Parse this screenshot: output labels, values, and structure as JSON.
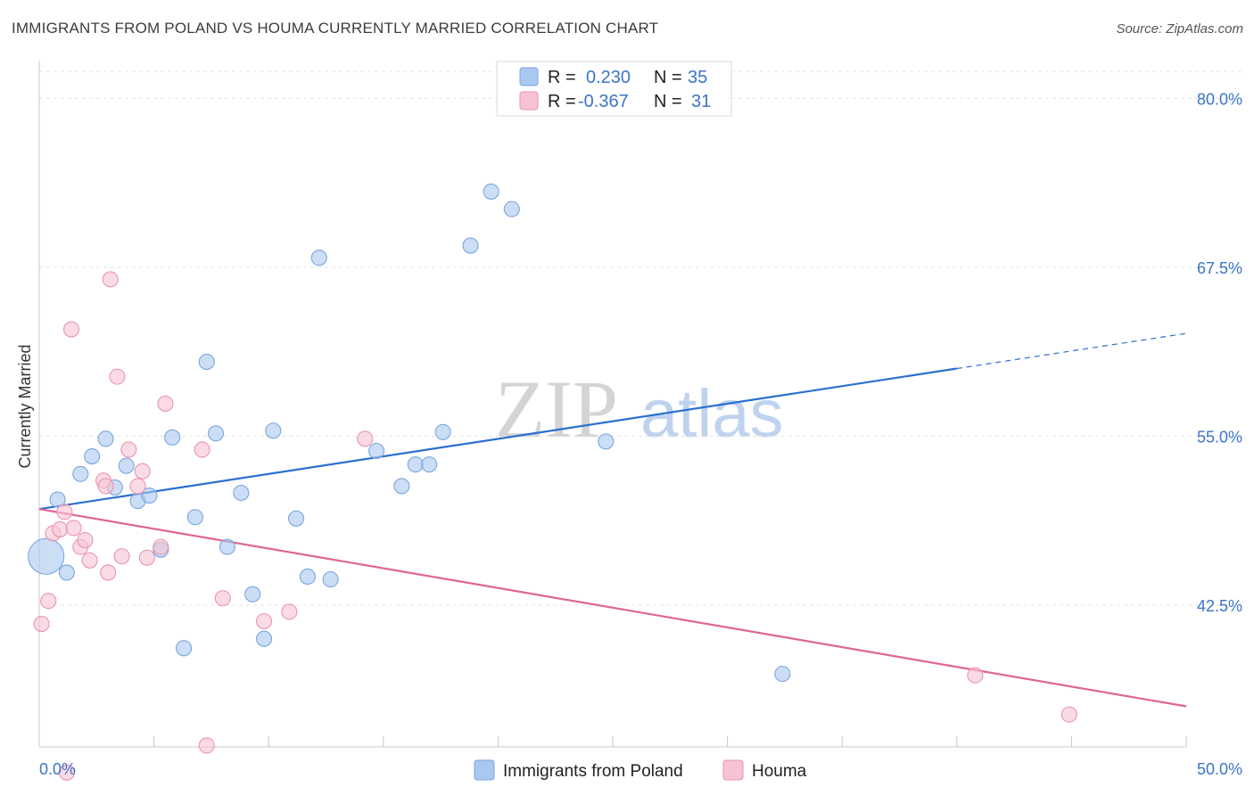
{
  "title": "IMMIGRANTS FROM POLAND VS HOUMA CURRENTLY MARRIED CORRELATION CHART",
  "source": "Source: ZipAtlas.com",
  "watermark": {
    "zip": "ZIP",
    "atlas": "atlas"
  },
  "legend_stats": {
    "r_label": "R =",
    "n_label": "N =",
    "rows": [
      {
        "r": "0.230",
        "n": "35"
      },
      {
        "r": "-0.367",
        "n": "31"
      }
    ]
  },
  "chart_data": {
    "type": "scatter",
    "title": "IMMIGRANTS FROM POLAND VS HOUMA CURRENTLY MARRIED CORRELATION CHART",
    "xlabel": "",
    "ylabel": "Currently Married",
    "xlim": [
      0,
      50
    ],
    "ylim": [
      32,
      82
    ],
    "x_tick_labels": [
      "0.0%",
      "50.0%"
    ],
    "y_ticks": [
      42.5,
      55.0,
      67.5,
      80.0
    ],
    "y_tick_labels": [
      "42.5%",
      "55.0%",
      "67.5%",
      "80.0%"
    ],
    "grid": true,
    "legend_position": "bottom-center",
    "series": [
      {
        "name": "Immigrants from Poland",
        "color": "#a9c8f0",
        "edge": "#7aa6dc",
        "line_color": "#2a6fd0",
        "trend": {
          "x0": 0,
          "y0": 49.6,
          "x1": 40,
          "y1": 60.0,
          "dash_x1": 50,
          "dash_y1": 62.6
        },
        "points": [
          {
            "x": 0.3,
            "y": 46.1,
            "big": true
          },
          {
            "x": 0.8,
            "y": 50.3
          },
          {
            "x": 1.2,
            "y": 44.9
          },
          {
            "x": 1.8,
            "y": 52.2
          },
          {
            "x": 2.3,
            "y": 53.5
          },
          {
            "x": 2.9,
            "y": 54.8
          },
          {
            "x": 3.3,
            "y": 51.2
          },
          {
            "x": 3.8,
            "y": 52.8
          },
          {
            "x": 4.3,
            "y": 50.2
          },
          {
            "x": 4.8,
            "y": 50.6
          },
          {
            "x": 5.3,
            "y": 46.6
          },
          {
            "x": 5.8,
            "y": 54.9
          },
          {
            "x": 6.3,
            "y": 39.3
          },
          {
            "x": 6.8,
            "y": 49.0
          },
          {
            "x": 7.3,
            "y": 60.5
          },
          {
            "x": 7.7,
            "y": 55.2
          },
          {
            "x": 8.2,
            "y": 46.8
          },
          {
            "x": 8.8,
            "y": 50.8
          },
          {
            "x": 9.3,
            "y": 43.3
          },
          {
            "x": 9.8,
            "y": 40.0
          },
          {
            "x": 10.2,
            "y": 55.4
          },
          {
            "x": 11.2,
            "y": 48.9
          },
          {
            "x": 11.7,
            "y": 44.6
          },
          {
            "x": 12.2,
            "y": 68.2
          },
          {
            "x": 12.7,
            "y": 44.4
          },
          {
            "x": 14.7,
            "y": 53.9
          },
          {
            "x": 15.8,
            "y": 51.3
          },
          {
            "x": 16.4,
            "y": 52.9
          },
          {
            "x": 17.0,
            "y": 52.9
          },
          {
            "x": 17.6,
            "y": 55.3
          },
          {
            "x": 18.8,
            "y": 69.1
          },
          {
            "x": 19.7,
            "y": 73.1
          },
          {
            "x": 20.6,
            "y": 71.8
          },
          {
            "x": 24.7,
            "y": 54.6
          },
          {
            "x": 32.4,
            "y": 37.4
          }
        ]
      },
      {
        "name": "Houma",
        "color": "#f7c3d4",
        "edge": "#ea93b2",
        "line_color": "#e06593",
        "trend": {
          "x0": 0,
          "y0": 49.6,
          "x1": 50,
          "y1": 35.0
        },
        "points": [
          {
            "x": 0.1,
            "y": 41.1
          },
          {
            "x": 0.4,
            "y": 42.8
          },
          {
            "x": 0.6,
            "y": 47.8
          },
          {
            "x": 0.9,
            "y": 48.1
          },
          {
            "x": 1.1,
            "y": 49.4
          },
          {
            "x": 1.2,
            "y": 30.1
          },
          {
            "x": 1.4,
            "y": 62.9
          },
          {
            "x": 1.5,
            "y": 48.2
          },
          {
            "x": 1.8,
            "y": 46.8
          },
          {
            "x": 2.0,
            "y": 47.3
          },
          {
            "x": 2.2,
            "y": 45.8
          },
          {
            "x": 2.8,
            "y": 51.7
          },
          {
            "x": 2.9,
            "y": 51.3
          },
          {
            "x": 3.0,
            "y": 44.9
          },
          {
            "x": 3.1,
            "y": 66.6
          },
          {
            "x": 3.4,
            "y": 59.4
          },
          {
            "x": 3.6,
            "y": 46.1
          },
          {
            "x": 3.9,
            "y": 54.0
          },
          {
            "x": 4.3,
            "y": 51.3
          },
          {
            "x": 4.5,
            "y": 52.4
          },
          {
            "x": 4.7,
            "y": 46.0
          },
          {
            "x": 5.3,
            "y": 46.8
          },
          {
            "x": 5.5,
            "y": 57.4
          },
          {
            "x": 7.1,
            "y": 54.0
          },
          {
            "x": 7.3,
            "y": 32.1
          },
          {
            "x": 8.0,
            "y": 43.0
          },
          {
            "x": 9.8,
            "y": 41.3
          },
          {
            "x": 10.9,
            "y": 42.0
          },
          {
            "x": 14.2,
            "y": 54.8
          },
          {
            "x": 40.8,
            "y": 37.3
          },
          {
            "x": 44.9,
            "y": 34.4
          }
        ]
      }
    ]
  }
}
